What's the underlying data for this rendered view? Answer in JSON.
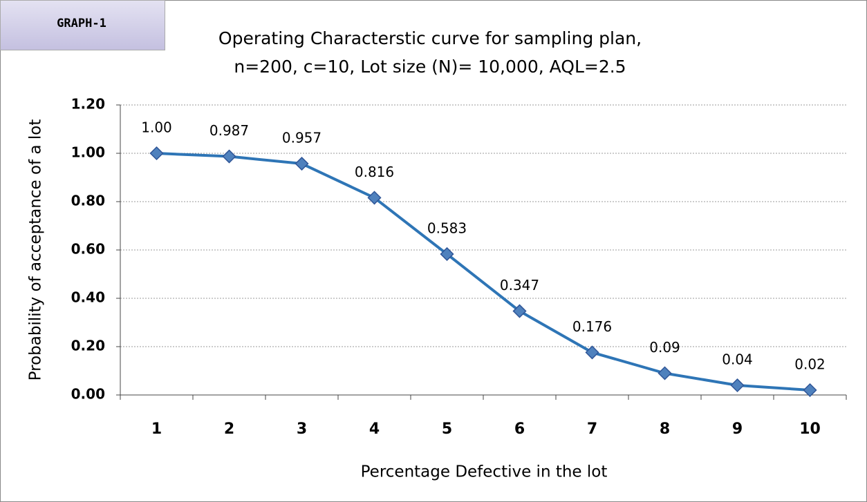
{
  "badge": "GRAPH-1",
  "chart_data": {
    "type": "line",
    "title": "Operating Characterstic curve for sampling plan,",
    "subtitle": "n=200, c=10, Lot size (N)= 10,000, AQL=2.5",
    "x_label": "Percentage Defective in the lot",
    "y_label": "Probability of acceptance of a lot",
    "categories": [
      "1",
      "2",
      "3",
      "4",
      "5",
      "6",
      "7",
      "8",
      "9",
      "10"
    ],
    "values": [
      1.0,
      0.987,
      0.957,
      0.816,
      0.583,
      0.347,
      0.176,
      0.09,
      0.04,
      0.02
    ],
    "value_labels": [
      "1.00",
      "0.987",
      "0.957",
      "0.816",
      "0.583",
      "0.347",
      "0.176",
      "0.09",
      "0.04",
      "0.02"
    ],
    "color": "#2e75b6",
    "marker_color": "#4f81bd",
    "ylim": [
      0,
      1.2
    ],
    "yticks": [
      {
        "value": 0,
        "label": "0.00"
      },
      {
        "value": 0.2,
        "label": "0.20"
      },
      {
        "value": 0.4,
        "label": "0.40"
      },
      {
        "value": 0.6,
        "label": "0.60"
      },
      {
        "value": 0.8,
        "label": "0.80"
      },
      {
        "value": 1.0,
        "label": "1.00"
      },
      {
        "value": 1.2,
        "label": "1.20"
      }
    ],
    "grid": true
  }
}
